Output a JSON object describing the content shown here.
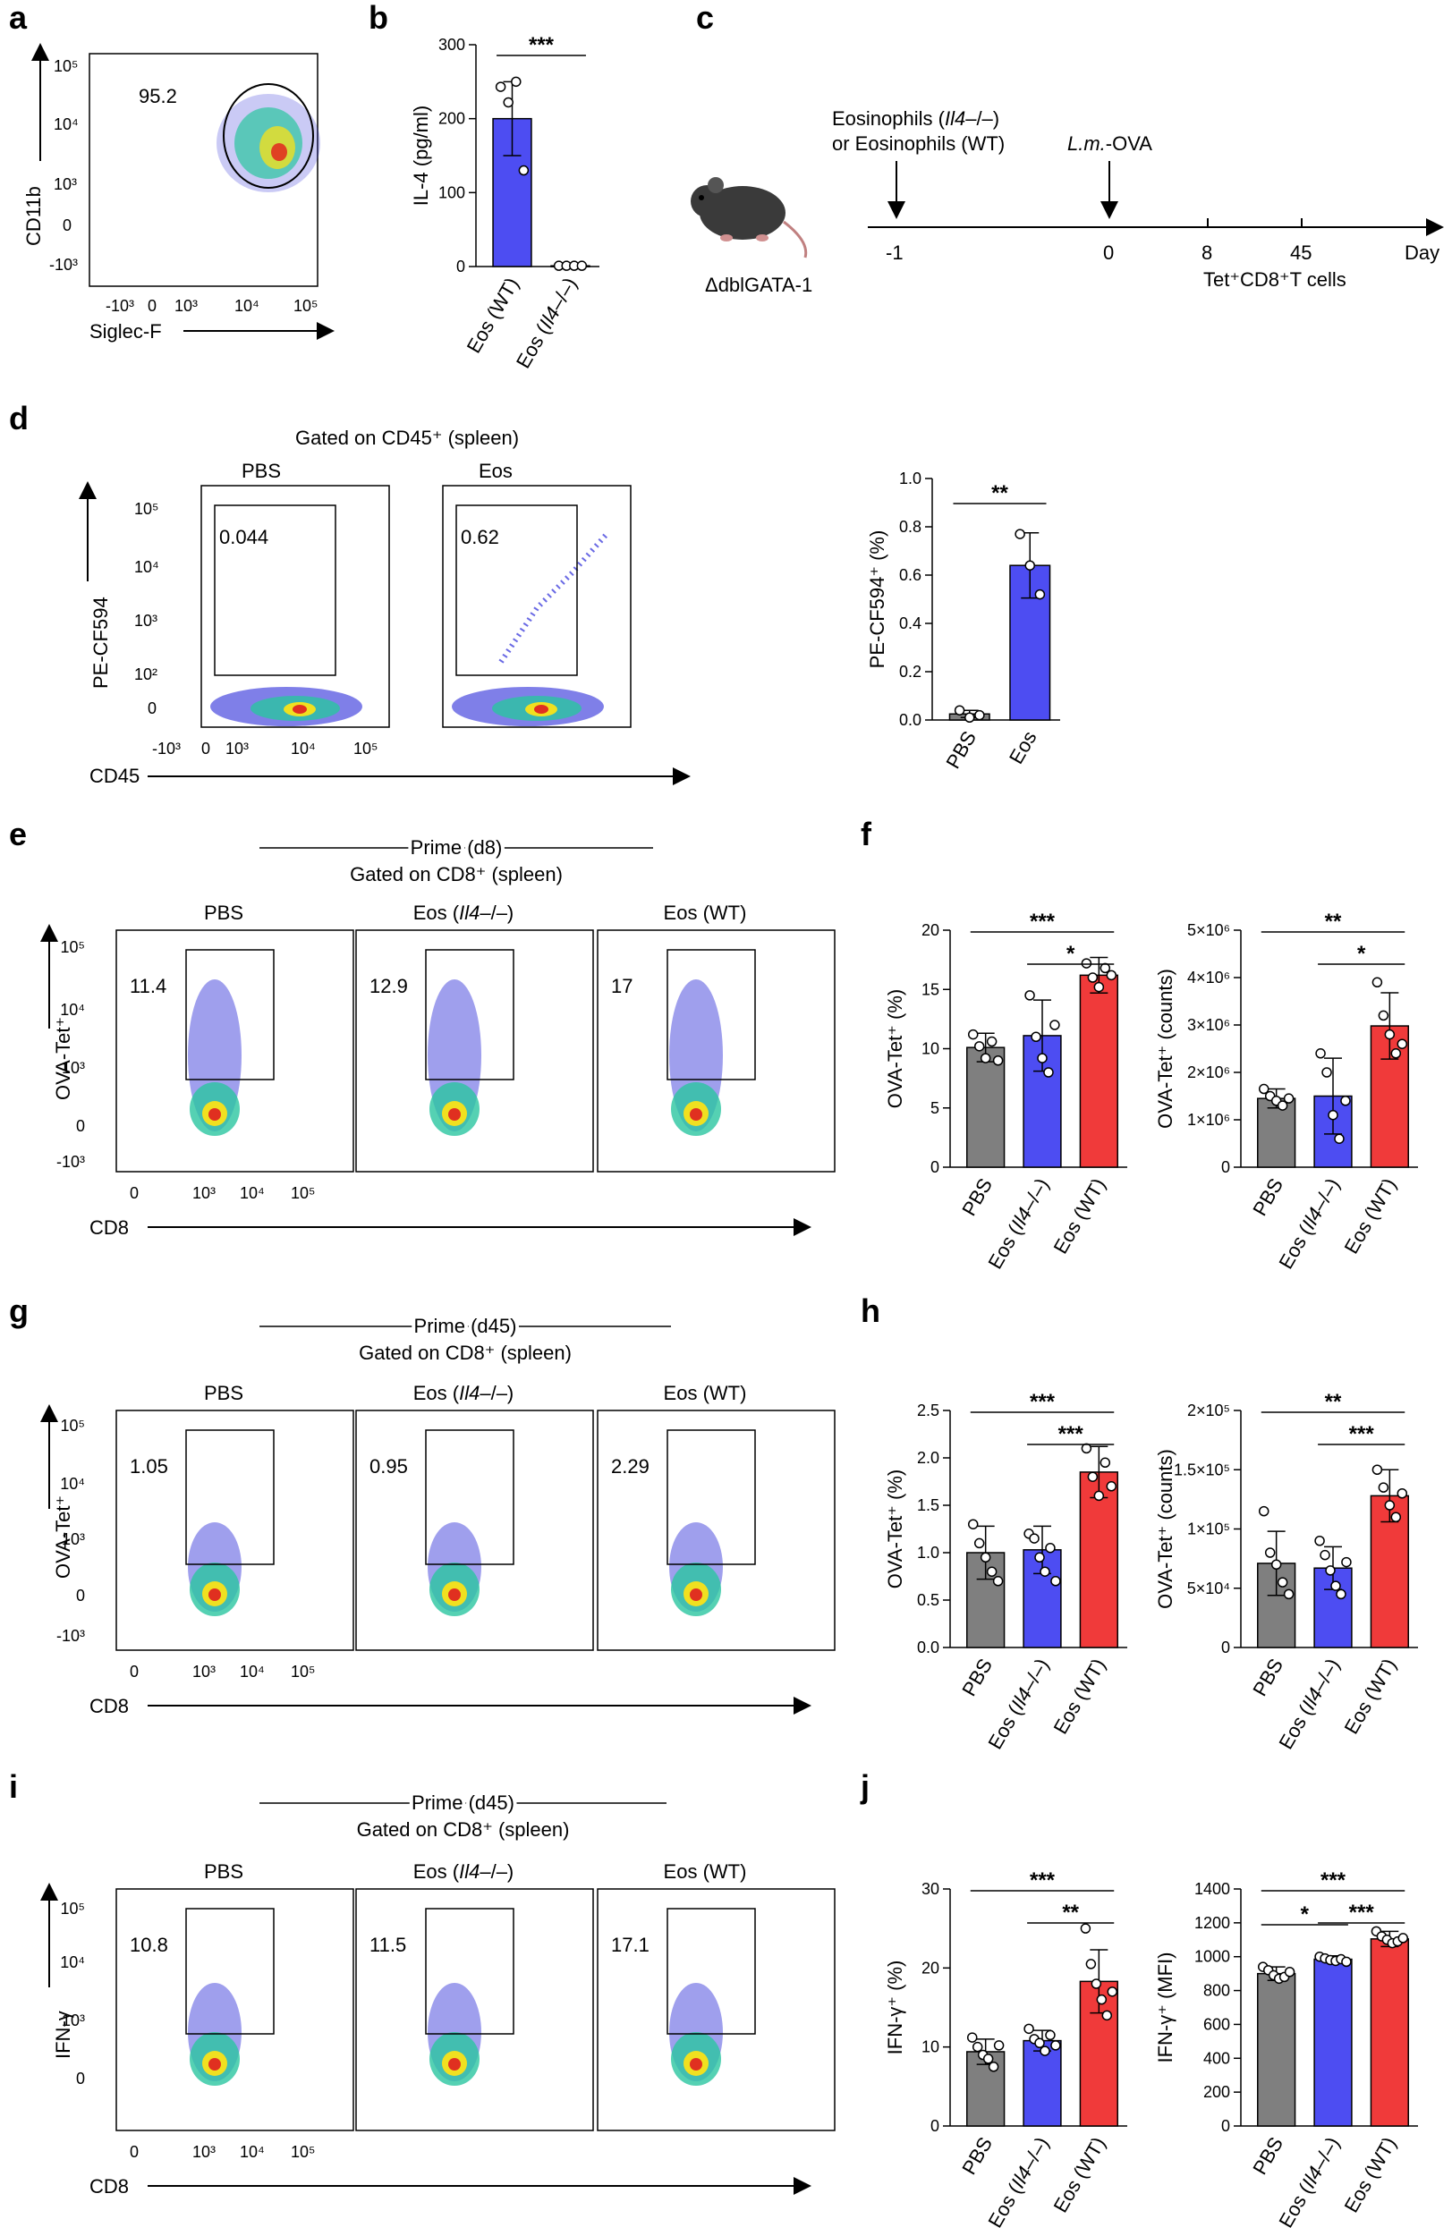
{
  "colors": {
    "pbs": "#7f7f7f",
    "ko": "#4d4df2",
    "wt": "#f03a3a",
    "dots_low": "#2a2ad8",
    "dots_mid": "#2bc6a0",
    "dots_high": "#f0e020",
    "dots_peak": "#e03020"
  },
  "panels": {
    "a": {
      "letter": "a",
      "xlabel": "Siglec-F",
      "ylabel": "CD11b",
      "gate_value": "95.2",
      "x_ticks": [
        "-10³",
        "0",
        "10³",
        "10⁴",
        "10⁵"
      ],
      "y_ticks": [
        "10⁵",
        "10⁴",
        "10³",
        "0",
        "-10³"
      ]
    },
    "b": {
      "letter": "b"
    },
    "c": {
      "letter": "c",
      "line1_a": "Eosinophils (",
      "line1_it": "Il4",
      "line1_b": "–/–)",
      "line2": "or Eosinophils (WT)",
      "lm_it": "L.m.",
      "lm_rest": "-OVA",
      "mouse_label": "ΔdblGATA-1",
      "ticks": [
        "-1",
        "0",
        "8",
        "45"
      ],
      "axis_end": "Day",
      "readout": "Tet⁺CD8⁺T cells"
    },
    "d": {
      "letter": "d",
      "gated": "Gated on CD45⁺ (spleen)",
      "groups": [
        {
          "name": "PBS",
          "value": "0.044"
        },
        {
          "name": "Eos",
          "value": "0.62"
        }
      ],
      "xlabel": "CD45",
      "ylabel": "PE-CF594",
      "x_ticks": [
        "-10³",
        "0",
        "10³",
        "10⁴",
        "10⁵"
      ],
      "y_ticks": [
        "10⁵",
        "10⁴",
        "10³",
        "10²",
        "0"
      ]
    },
    "e": {
      "letter": "e",
      "prime": "Prime (d8)",
      "gated": "Gated on CD8⁺ (spleen)",
      "groups": [
        {
          "name": "PBS",
          "value": "11.4"
        },
        {
          "name": "Eos (Il4–/–)",
          "value": "12.9"
        },
        {
          "name": "Eos (WT)",
          "value": "17"
        }
      ],
      "xlabel": "CD8",
      "ylabel": "OVA-Tet⁺",
      "x_ticks": [
        "0",
        "10³",
        "10⁴",
        "10⁵"
      ],
      "y_ticks": [
        "10⁵",
        "10⁴",
        "10³",
        "0",
        "-10³"
      ]
    },
    "f": {
      "letter": "f"
    },
    "g": {
      "letter": "g",
      "prime": "Prime (d45)",
      "gated": "Gated on CD8⁺ (spleen)",
      "groups": [
        {
          "name": "PBS",
          "value": "1.05"
        },
        {
          "name": "Eos (Il4–/–)",
          "value": "0.95"
        },
        {
          "name": "Eos (WT)",
          "value": "2.29"
        }
      ],
      "xlabel": "CD8",
      "ylabel": "OVA-Tet⁺",
      "x_ticks": [
        "0",
        "10³",
        "10⁴",
        "10⁵"
      ],
      "y_ticks": [
        "10⁵",
        "10⁴",
        "10³",
        "0",
        "-10³"
      ]
    },
    "h": {
      "letter": "h"
    },
    "i": {
      "letter": "i",
      "prime": "Prime (d45)",
      "gated": "Gated on CD8⁺ (spleen)",
      "groups": [
        {
          "name": "PBS",
          "value": "10.8"
        },
        {
          "name": "Eos (Il4–/–)",
          "value": "11.5"
        },
        {
          "name": "Eos (WT)",
          "value": "17.1"
        }
      ],
      "xlabel": "CD8",
      "ylabel": "IFN-γ",
      "x_ticks": [
        "0",
        "10³",
        "10⁴",
        "10⁵"
      ],
      "y_ticks": [
        "10⁵",
        "10⁴",
        "10³",
        "0"
      ]
    },
    "j": {
      "letter": "j"
    }
  },
  "chart_data": [
    {
      "id": "b",
      "type": "bar",
      "ylabel": "IL-4 (pg/ml)",
      "ylim": [
        0,
        300
      ],
      "yticks": [
        "0",
        "100",
        "200",
        "300"
      ],
      "categories": [
        "Eos (WT)",
        "Eos (Il4–/–)"
      ],
      "values": [
        200,
        1
      ],
      "errors": [
        50,
        1
      ],
      "points": [
        [
          243,
          222,
          250,
          130
        ],
        [
          1,
          1,
          1,
          1
        ]
      ],
      "significance": [
        {
          "between": [
            0,
            1
          ],
          "label": "***"
        }
      ]
    },
    {
      "id": "d",
      "type": "bar",
      "ylabel": "PE-CF594⁺ (%)",
      "ylim": [
        0,
        1.0
      ],
      "yticks": [
        "0.0",
        "0.2",
        "0.4",
        "0.6",
        "0.8",
        "1.0"
      ],
      "categories": [
        "PBS",
        "Eos"
      ],
      "values": [
        0.025,
        0.64
      ],
      "errors": [
        0.015,
        0.135
      ],
      "points": [
        [
          0.04,
          0.01,
          0.02
        ],
        [
          0.77,
          0.64,
          0.52
        ]
      ],
      "significance": [
        {
          "between": [
            0,
            1
          ],
          "label": "**"
        }
      ]
    },
    {
      "id": "f1",
      "type": "bar",
      "ylabel": "OVA-Tet⁺ (%)",
      "ylim": [
        0,
        20
      ],
      "yticks": [
        "0",
        "5",
        "10",
        "15",
        "20"
      ],
      "categories": [
        "PBS",
        "Eos (Il4–/–)",
        "Eos (WT)"
      ],
      "values": [
        10.1,
        11.1,
        16.2
      ],
      "errors": [
        1.2,
        3.0,
        1.5
      ],
      "points": [
        [
          11.2,
          10.2,
          9.2,
          10.6,
          9.0
        ],
        [
          14.5,
          11.0,
          9.2,
          8.0,
          12.0
        ],
        [
          17.2,
          16.0,
          15.2,
          16.8,
          16.2
        ]
      ],
      "significance": [
        {
          "between": [
            0,
            2
          ],
          "label": "***"
        },
        {
          "between": [
            1,
            2
          ],
          "label": "*"
        }
      ]
    },
    {
      "id": "f2",
      "type": "bar",
      "ylabel": "OVA-Tet⁺ (counts)",
      "ylim": [
        0,
        5000000
      ],
      "yticks": [
        "0",
        "1×10⁶",
        "2×10⁶",
        "3×10⁶",
        "4×10⁶",
        "5×10⁶"
      ],
      "categories": [
        "PBS",
        "Eos (Il4–/–)",
        "Eos (WT)"
      ],
      "values": [
        1450000,
        1500000,
        2980000
      ],
      "errors": [
        200000,
        800000,
        700000
      ],
      "points": [
        [
          1650000,
          1500000,
          1400000,
          1300000,
          1450000
        ],
        [
          2400000,
          2000000,
          1100000,
          600000,
          1400000
        ],
        [
          3900000,
          3200000,
          2800000,
          2400000,
          2600000
        ]
      ],
      "significance": [
        {
          "between": [
            0,
            2
          ],
          "label": "**"
        },
        {
          "between": [
            1,
            2
          ],
          "label": "*"
        }
      ]
    },
    {
      "id": "h1",
      "type": "bar",
      "ylabel": "OVA-Tet⁺ (%)",
      "ylim": [
        0,
        2.5
      ],
      "yticks": [
        "0.0",
        "0.5",
        "1.0",
        "1.5",
        "2.0",
        "2.5"
      ],
      "categories": [
        "PBS",
        "Eos (Il4–/–)",
        "Eos (WT)"
      ],
      "values": [
        1.0,
        1.03,
        1.85
      ],
      "errors": [
        0.28,
        0.25,
        0.27
      ],
      "points": [
        [
          1.3,
          1.1,
          0.95,
          0.8,
          0.7
        ],
        [
          1.2,
          1.15,
          0.95,
          0.8,
          1.05,
          0.7
        ],
        [
          2.1,
          1.8,
          1.6,
          1.95,
          1.7
        ]
      ],
      "significance": [
        {
          "between": [
            0,
            2
          ],
          "label": "***"
        },
        {
          "between": [
            1,
            2
          ],
          "label": "***"
        }
      ]
    },
    {
      "id": "h2",
      "type": "bar",
      "ylabel": "OVA-Tet⁺ (counts)",
      "ylim": [
        0,
        200000
      ],
      "yticks": [
        "0",
        "5×10⁴",
        "1×10⁵",
        "1.5×10⁵",
        "2×10⁵"
      ],
      "categories": [
        "PBS",
        "Eos (Il4–/–)",
        "Eos (WT)"
      ],
      "values": [
        71000,
        67000,
        128000
      ],
      "errors": [
        27000,
        18000,
        22000
      ],
      "points": [
        [
          115000,
          80000,
          70000,
          55000,
          45000
        ],
        [
          90000,
          78000,
          65000,
          52000,
          45000,
          72000
        ],
        [
          150000,
          135000,
          120000,
          110000,
          130000
        ]
      ],
      "significance": [
        {
          "between": [
            0,
            2
          ],
          "label": "**"
        },
        {
          "between": [
            1,
            2
          ],
          "label": "***"
        }
      ]
    },
    {
      "id": "j1",
      "type": "bar",
      "ylabel": "IFN-γ⁺ (%)",
      "ylim": [
        0,
        30
      ],
      "yticks": [
        "0",
        "10",
        "20",
        "30"
      ],
      "categories": [
        "PBS",
        "Eos (Il4–/–)",
        "Eos (WT)"
      ],
      "values": [
        9.4,
        10.8,
        18.3
      ],
      "errors": [
        1.6,
        1.3,
        4.0
      ],
      "points": [
        [
          11.2,
          10.0,
          9.0,
          8.5,
          7.5,
          10.2
        ],
        [
          12.3,
          11.0,
          10.5,
          9.5,
          11.5,
          10.2
        ],
        [
          25.0,
          20.5,
          18.0,
          16.0,
          14.0,
          17.0
        ]
      ],
      "significance": [
        {
          "between": [
            0,
            2
          ],
          "label": "***"
        },
        {
          "between": [
            1,
            2
          ],
          "label": "**"
        }
      ]
    },
    {
      "id": "j2",
      "type": "bar",
      "ylabel": "IFN-γ⁺ (MFI)",
      "ylim": [
        0,
        1400
      ],
      "yticks": [
        "0",
        "200",
        "400",
        "600",
        "800",
        "1000",
        "1200",
        "1400"
      ],
      "categories": [
        "PBS",
        "Eos (Il4–/–)",
        "Eos (WT)"
      ],
      "values": [
        900,
        985,
        1105
      ],
      "errors": [
        40,
        20,
        45
      ],
      "points": [
        [
          940,
          920,
          890,
          870,
          880,
          910
        ],
        [
          1000,
          990,
          980,
          975,
          985,
          970
        ],
        [
          1150,
          1120,
          1100,
          1080,
          1090,
          1110
        ]
      ],
      "significance": [
        {
          "between": [
            0,
            2
          ],
          "label": "***"
        },
        {
          "between": [
            0,
            1
          ],
          "label": "*"
        },
        {
          "between": [
            1,
            2
          ],
          "label": "***"
        }
      ]
    }
  ]
}
